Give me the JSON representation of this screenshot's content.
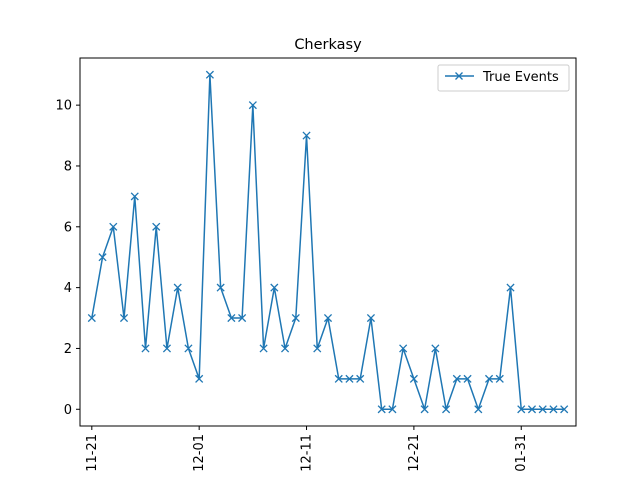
{
  "chart_data": {
    "type": "line",
    "title": "Cherkasy",
    "xlabel": "",
    "ylabel": "",
    "x_tick_labels": [
      "11-21",
      "12-01",
      "12-11",
      "12-21",
      "01-31"
    ],
    "x_tick_index": [
      0,
      10,
      20,
      30,
      40
    ],
    "ylim": [
      -0.55,
      11.55
    ],
    "y_ticks": [
      0,
      2,
      4,
      6,
      8,
      10
    ],
    "grid": false,
    "legend": "top-right",
    "series": [
      {
        "name": "True Events",
        "color": "#1f77b4",
        "marker": "x",
        "values": [
          3,
          5,
          6,
          3,
          7,
          2,
          6,
          2,
          4,
          2,
          1,
          11,
          4,
          3,
          3,
          10,
          2,
          4,
          2,
          3,
          9,
          2,
          3,
          1,
          1,
          1,
          3,
          0,
          0,
          2,
          1,
          0,
          2,
          0,
          1,
          1,
          0,
          1,
          1,
          4,
          0,
          0,
          0,
          0,
          0
        ]
      }
    ]
  }
}
